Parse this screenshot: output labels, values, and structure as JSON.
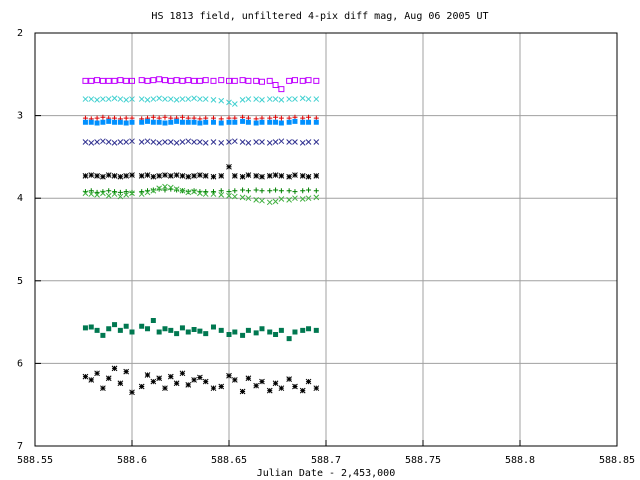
{
  "chart_data": {
    "type": "scatter",
    "title": "HS 1813 field, unfiltered 4-pix diff mag, Aug 06 2005 UT",
    "x_label": "Julian Date - 2,453,000",
    "xlim": [
      588.55,
      588.85
    ],
    "xticks": [
      588.55,
      588.6,
      588.65,
      588.7,
      588.75,
      588.8,
      588.85
    ],
    "ylim": [
      2,
      7
    ],
    "y_reversed": true,
    "yticks": [
      2,
      3,
      4,
      5,
      6,
      7
    ],
    "grid": true,
    "x": [
      588.576,
      588.579,
      588.582,
      588.585,
      588.588,
      588.591,
      588.594,
      588.597,
      588.6,
      588.605,
      588.608,
      588.611,
      588.614,
      588.617,
      588.62,
      588.623,
      588.626,
      588.629,
      588.632,
      588.635,
      588.638,
      588.642,
      588.646,
      588.65,
      588.653,
      588.657,
      588.66,
      588.664,
      588.667,
      588.671,
      588.674,
      588.677,
      588.681,
      588.684,
      588.688,
      588.691,
      588.695
    ],
    "series": [
      {
        "color": "#c000ff",
        "marker": "square-open",
        "values": [
          2.58,
          2.58,
          2.57,
          2.58,
          2.58,
          2.58,
          2.57,
          2.58,
          2.58,
          2.57,
          2.58,
          2.57,
          2.56,
          2.57,
          2.58,
          2.57,
          2.58,
          2.57,
          2.58,
          2.58,
          2.57,
          2.58,
          2.57,
          2.58,
          2.58,
          2.57,
          2.58,
          2.58,
          2.59,
          2.58,
          2.63,
          2.68,
          2.58,
          2.57,
          2.58,
          2.57,
          2.58
        ]
      },
      {
        "color": "#40d0d0",
        "marker": "x",
        "values": [
          2.8,
          2.8,
          2.81,
          2.8,
          2.8,
          2.79,
          2.8,
          2.81,
          2.8,
          2.8,
          2.81,
          2.8,
          2.79,
          2.8,
          2.8,
          2.81,
          2.8,
          2.8,
          2.79,
          2.8,
          2.8,
          2.81,
          2.82,
          2.84,
          2.86,
          2.81,
          2.8,
          2.8,
          2.81,
          2.8,
          2.8,
          2.81,
          2.8,
          2.8,
          2.79,
          2.8,
          2.8
        ]
      },
      {
        "color": "#e00000",
        "marker": "plus",
        "values": [
          3.03,
          3.04,
          3.03,
          3.02,
          3.03,
          3.03,
          3.04,
          3.03,
          3.03,
          3.04,
          3.03,
          3.02,
          3.03,
          3.02,
          3.03,
          3.03,
          3.02,
          3.03,
          3.03,
          3.04,
          3.03,
          3.03,
          3.04,
          3.03,
          3.03,
          3.02,
          3.03,
          3.04,
          3.03,
          3.03,
          3.02,
          3.03,
          3.03,
          3.02,
          3.03,
          3.02,
          3.03
        ]
      },
      {
        "color": "#0090ff",
        "marker": "square",
        "values": [
          3.08,
          3.08,
          3.09,
          3.08,
          3.07,
          3.08,
          3.08,
          3.09,
          3.08,
          3.08,
          3.07,
          3.08,
          3.08,
          3.09,
          3.08,
          3.07,
          3.08,
          3.08,
          3.08,
          3.09,
          3.08,
          3.08,
          3.09,
          3.08,
          3.08,
          3.07,
          3.08,
          3.09,
          3.08,
          3.08,
          3.08,
          3.09,
          3.08,
          3.07,
          3.08,
          3.08,
          3.08
        ]
      },
      {
        "color": "#303090",
        "marker": "x",
        "values": [
          3.32,
          3.33,
          3.32,
          3.31,
          3.32,
          3.33,
          3.32,
          3.32,
          3.31,
          3.32,
          3.31,
          3.32,
          3.33,
          3.32,
          3.32,
          3.33,
          3.32,
          3.31,
          3.32,
          3.32,
          3.33,
          3.32,
          3.33,
          3.32,
          3.31,
          3.32,
          3.33,
          3.32,
          3.32,
          3.33,
          3.32,
          3.31,
          3.32,
          3.32,
          3.33,
          3.32,
          3.32
        ]
      },
      {
        "color": "#000000",
        "marker": "star",
        "values": [
          3.73,
          3.72,
          3.73,
          3.74,
          3.72,
          3.73,
          3.74,
          3.73,
          3.72,
          3.73,
          3.72,
          3.74,
          3.73,
          3.72,
          3.73,
          3.72,
          3.73,
          3.74,
          3.73,
          3.72,
          3.73,
          3.74,
          3.73,
          3.62,
          3.73,
          3.74,
          3.72,
          3.73,
          3.74,
          3.73,
          3.72,
          3.73,
          3.74,
          3.72,
          3.73,
          3.74,
          3.73
        ]
      },
      {
        "color": "#008000",
        "marker": "plus",
        "values": [
          3.92,
          3.91,
          3.93,
          3.92,
          3.91,
          3.92,
          3.93,
          3.92,
          3.93,
          3.92,
          3.91,
          3.9,
          3.89,
          3.9,
          3.89,
          3.9,
          3.91,
          3.92,
          3.91,
          3.92,
          3.92,
          3.92,
          3.91,
          3.92,
          3.91,
          3.9,
          3.91,
          3.9,
          3.91,
          3.91,
          3.9,
          3.91,
          3.91,
          3.92,
          3.91,
          3.9,
          3.91
        ]
      },
      {
        "color": "#40b040",
        "marker": "x",
        "values": [
          3.94,
          3.95,
          3.96,
          3.94,
          3.97,
          3.95,
          3.98,
          3.96,
          3.94,
          3.95,
          3.93,
          3.91,
          3.88,
          3.86,
          3.87,
          3.89,
          3.91,
          3.93,
          3.92,
          3.94,
          3.95,
          3.95,
          3.96,
          3.97,
          3.98,
          3.99,
          4.0,
          4.02,
          4.03,
          4.05,
          4.04,
          4.01,
          4.02,
          4.0,
          4.01,
          4.0,
          3.99
        ]
      },
      {
        "color": "#007850",
        "marker": "square",
        "values": [
          5.57,
          5.56,
          5.6,
          5.66,
          5.58,
          5.53,
          5.6,
          5.55,
          5.62,
          5.55,
          5.58,
          5.48,
          5.62,
          5.58,
          5.6,
          5.64,
          5.57,
          5.62,
          5.59,
          5.61,
          5.64,
          5.56,
          5.6,
          5.65,
          5.62,
          5.66,
          5.6,
          5.63,
          5.58,
          5.62,
          5.65,
          5.6,
          5.7,
          5.62,
          5.6,
          5.58,
          5.6
        ]
      },
      {
        "color": "#000000",
        "marker": "star",
        "values": [
          6.16,
          6.2,
          6.12,
          6.3,
          6.18,
          6.06,
          6.24,
          6.1,
          6.35,
          6.28,
          6.14,
          6.22,
          6.18,
          6.3,
          6.16,
          6.24,
          6.12,
          6.26,
          6.2,
          6.17,
          6.22,
          6.3,
          6.28,
          6.15,
          6.2,
          6.34,
          6.18,
          6.27,
          6.22,
          6.33,
          6.24,
          6.3,
          6.19,
          6.28,
          6.33,
          6.22,
          6.3
        ]
      }
    ]
  }
}
